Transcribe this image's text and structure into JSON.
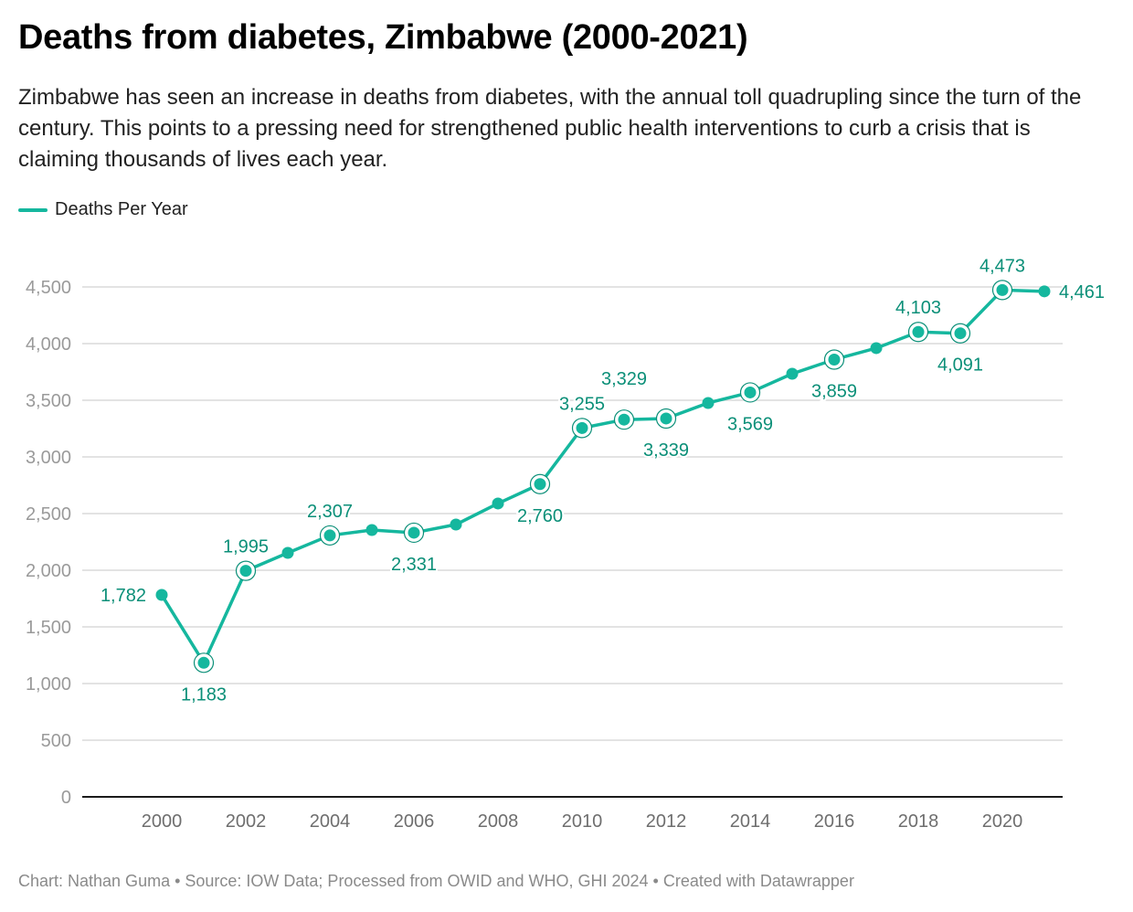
{
  "header": {
    "title": "Deaths from diabetes, Zimbabwe (2000-2021)",
    "subtitle": "Zimbabwe has seen an increase in deaths from diabetes, with the annual toll quadrupling since the turn of the century. This points to a pressing need for strengthened public health interventions to curb a crisis that is claiming thousands of lives each year."
  },
  "legend": {
    "label": "Deaths Per Year",
    "color": "#15b79e"
  },
  "footer": {
    "text": "Chart: Nathan Guma • Source: IOW Data; Processed from OWID and WHO, GHI 2024 • Created with Datawrapper"
  },
  "colors": {
    "line": "#15b79e",
    "label": "#0b8f78",
    "grid": "#e3e3e3",
    "axis": "#1a1a1a"
  },
  "chart_data": {
    "type": "line",
    "title": "Deaths from diabetes, Zimbabwe (2000-2021)",
    "xlabel": "",
    "ylabel": "",
    "x": [
      2000,
      2001,
      2002,
      2003,
      2004,
      2005,
      2006,
      2007,
      2008,
      2009,
      2010,
      2011,
      2012,
      2013,
      2014,
      2015,
      2016,
      2017,
      2018,
      2019,
      2020,
      2021
    ],
    "series": [
      {
        "name": "Deaths Per Year",
        "values": [
          1782,
          1183,
          1995,
          2153,
          2307,
          2355,
          2331,
          2403,
          2589,
          2760,
          3255,
          3329,
          3339,
          3476,
          3569,
          3734,
          3859,
          3960,
          4103,
          4091,
          4473,
          4461
        ]
      }
    ],
    "xlim": [
      1999,
      2021.9
    ],
    "ylim": [
      0,
      4500
    ],
    "y_ticks": [
      0,
      500,
      1000,
      1500,
      2000,
      2500,
      3000,
      3500,
      4000,
      4500
    ],
    "y_tick_labels": [
      "0",
      "500",
      "1,000",
      "1,500",
      "2,000",
      "2,500",
      "3,000",
      "3,500",
      "4,000",
      "4,500"
    ],
    "x_ticks": [
      2000,
      2002,
      2004,
      2006,
      2008,
      2010,
      2012,
      2014,
      2016,
      2018,
      2020
    ],
    "x_tick_labels": [
      "2000",
      "2002",
      "2004",
      "2006",
      "2008",
      "2010",
      "2012",
      "2014",
      "2016",
      "2018",
      "2020"
    ],
    "grid": true,
    "legend_position": "top-left",
    "annotations": [
      {
        "x": 2000,
        "label": "1,782",
        "pos": "left",
        "highlight": false
      },
      {
        "x": 2001,
        "label": "1,183",
        "pos": "below",
        "highlight": true
      },
      {
        "x": 2002,
        "label": "1,995",
        "pos": "above",
        "highlight": true
      },
      {
        "x": 2004,
        "label": "2,307",
        "pos": "above",
        "highlight": true
      },
      {
        "x": 2006,
        "label": "2,331",
        "pos": "below",
        "highlight": true
      },
      {
        "x": 2009,
        "label": "2,760",
        "pos": "below",
        "highlight": true
      },
      {
        "x": 2010,
        "label": "3,255",
        "pos": "above",
        "highlight": true
      },
      {
        "x": 2011,
        "label": "3,329",
        "pos": "above-high",
        "highlight": true
      },
      {
        "x": 2012,
        "label": "3,339",
        "pos": "below",
        "highlight": true
      },
      {
        "x": 2014,
        "label": "3,569",
        "pos": "below",
        "highlight": true
      },
      {
        "x": 2016,
        "label": "3,859",
        "pos": "below",
        "highlight": true
      },
      {
        "x": 2018,
        "label": "4,103",
        "pos": "above",
        "highlight": true
      },
      {
        "x": 2019,
        "label": "4,091",
        "pos": "below",
        "highlight": true
      },
      {
        "x": 2020,
        "label": "4,473",
        "pos": "above",
        "highlight": true
      },
      {
        "x": 2021,
        "label": "4,461",
        "pos": "right",
        "highlight": false
      }
    ]
  }
}
